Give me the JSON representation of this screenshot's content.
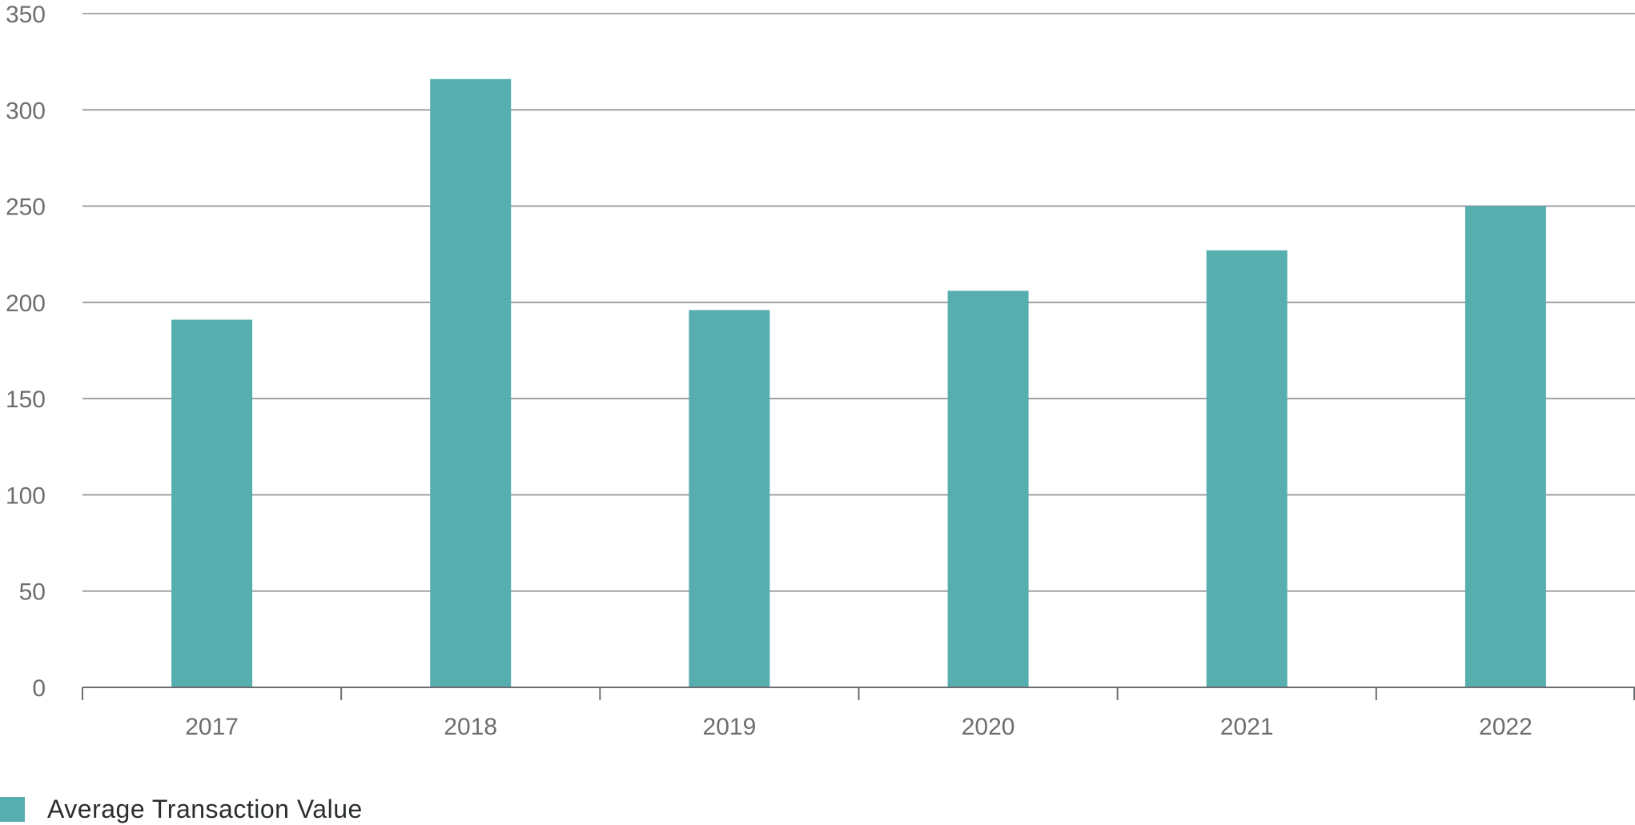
{
  "chart_data": {
    "type": "bar",
    "categories": [
      "2017",
      "2018",
      "2019",
      "2020",
      "2021",
      "2022"
    ],
    "series": [
      {
        "name": "Average Transaction Value",
        "values": [
          191,
          316,
          196,
          206,
          227,
          250
        ]
      }
    ],
    "ylim": [
      0,
      350
    ],
    "yticks": [
      0,
      50,
      100,
      150,
      200,
      250,
      300,
      350
    ],
    "grid": true,
    "legend_position": "bottom-left",
    "colors": {
      "bar": "#57aeaf",
      "grid": "#8a8c8e",
      "axis": "#6b6e70",
      "tick_text": "#6b6e70"
    }
  }
}
